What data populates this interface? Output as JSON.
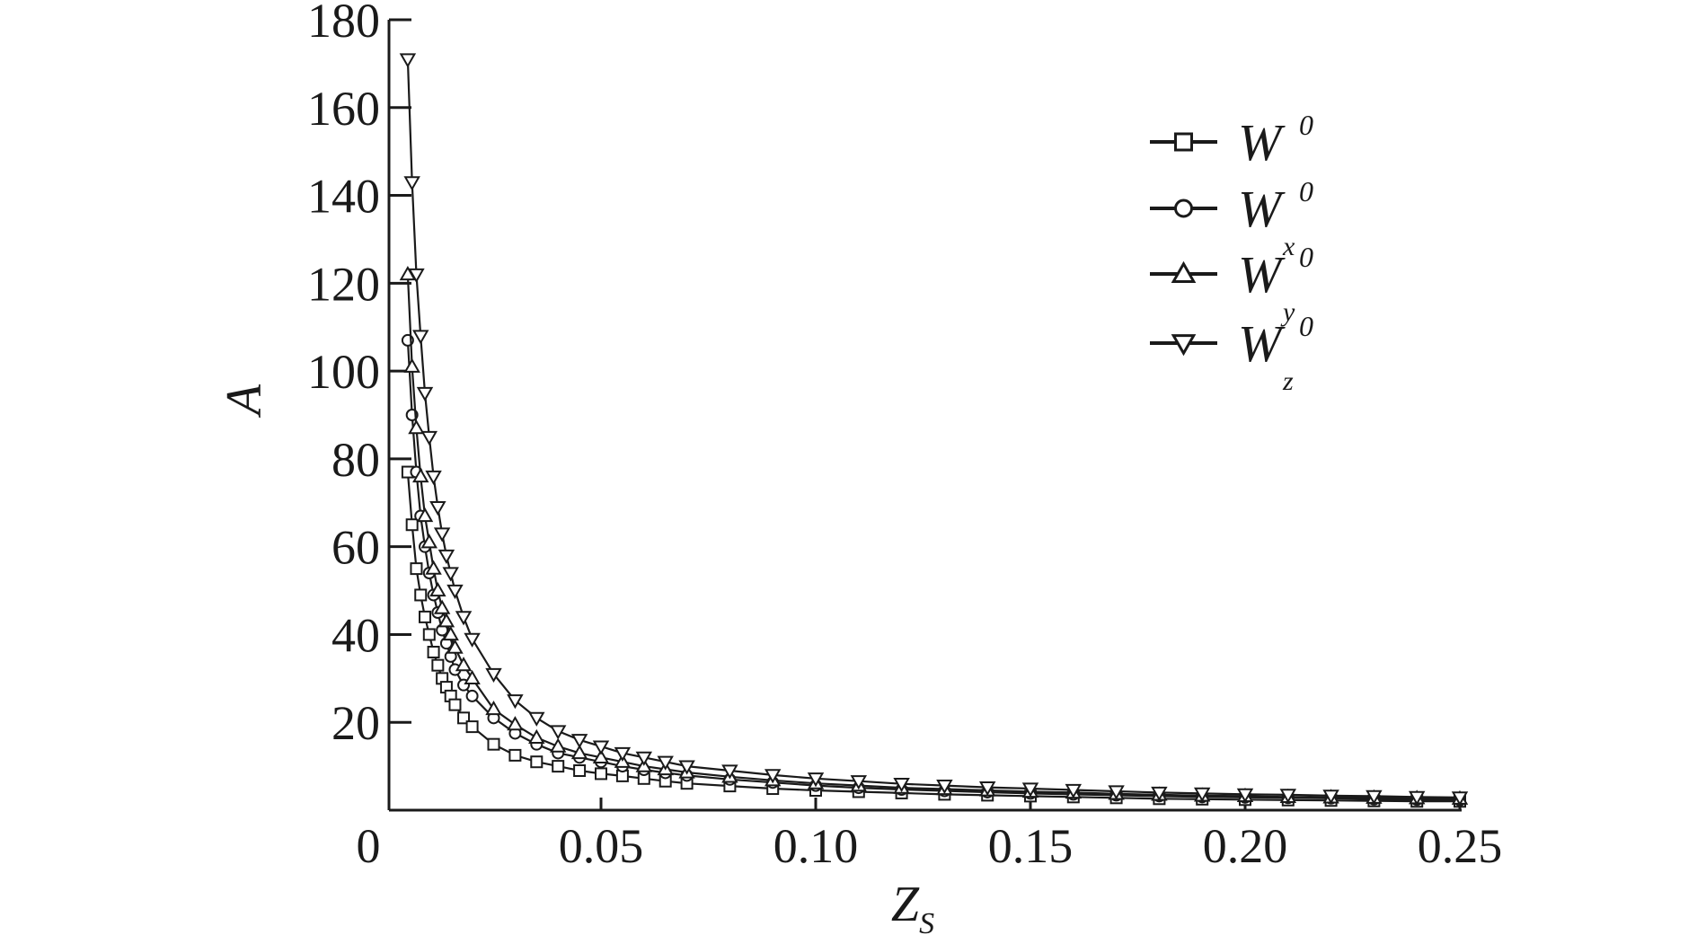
{
  "chart_data": {
    "type": "line",
    "title": "",
    "xlabel": {
      "main": "Z",
      "sub": "S"
    },
    "ylabel": "A",
    "xlim": [
      0,
      0.25
    ],
    "ylim": [
      0,
      180
    ],
    "x_ticks": [
      "0",
      "0.05",
      "0.10",
      "0.15",
      "0.20",
      "0.25"
    ],
    "x_tick_values": [
      0,
      0.05,
      0.1,
      0.15,
      0.2,
      0.25
    ],
    "y_ticks": [
      "20",
      "40",
      "60",
      "80",
      "100",
      "120",
      "140",
      "160",
      "180"
    ],
    "y_tick_values": [
      20,
      40,
      60,
      80,
      100,
      120,
      140,
      160,
      180
    ],
    "grid": false,
    "legend_position": "top-right",
    "colors": {
      "line": "#1a1a1a",
      "marker_fill": "#ffffff",
      "background": "#ffffff"
    },
    "series": [
      {
        "name": "W^0",
        "label_main": "W",
        "label_sup": "0",
        "label_sub": "",
        "marker": "square",
        "x": [
          0.005,
          0.006,
          0.007,
          0.008,
          0.009,
          0.01,
          0.011,
          0.012,
          0.013,
          0.014,
          0.015,
          0.016,
          0.018,
          0.02,
          0.025,
          0.03,
          0.035,
          0.04,
          0.045,
          0.05,
          0.055,
          0.06,
          0.065,
          0.07,
          0.08,
          0.09,
          0.1,
          0.11,
          0.12,
          0.13,
          0.14,
          0.15,
          0.16,
          0.17,
          0.18,
          0.19,
          0.2,
          0.21,
          0.22,
          0.23,
          0.24,
          0.25
        ],
        "y": [
          77,
          65,
          55,
          49,
          44,
          40,
          36,
          33,
          30,
          28,
          26,
          24,
          21,
          19,
          15,
          12.5,
          11,
          10,
          9,
          8.3,
          7.8,
          7.2,
          6.6,
          6.1,
          5.5,
          4.9,
          4.5,
          4.2,
          3.9,
          3.6,
          3.4,
          3.2,
          3.0,
          2.8,
          2.6,
          2.5,
          2.4,
          2.3,
          2.2,
          2.1,
          2.0,
          2.0
        ]
      },
      {
        "name": "W_x^0",
        "label_main": "W",
        "label_sup": "0",
        "label_sub": "x",
        "marker": "circle",
        "x": [
          0.005,
          0.006,
          0.007,
          0.008,
          0.009,
          0.01,
          0.011,
          0.012,
          0.013,
          0.014,
          0.015,
          0.016,
          0.018,
          0.02,
          0.025,
          0.03,
          0.035,
          0.04,
          0.045,
          0.05,
          0.055,
          0.06,
          0.065,
          0.07,
          0.08,
          0.09,
          0.1,
          0.11,
          0.12,
          0.13,
          0.14,
          0.15,
          0.16,
          0.17,
          0.18,
          0.19,
          0.2,
          0.21,
          0.22,
          0.23,
          0.24,
          0.25
        ],
        "y": [
          107,
          90,
          77,
          67,
          60,
          54,
          49,
          45,
          41,
          38,
          35,
          32,
          28.5,
          26,
          21,
          17.5,
          15,
          13,
          12,
          11,
          10,
          9.2,
          8.5,
          7.9,
          7.0,
          6.3,
          5.6,
          5.1,
          4.7,
          4.4,
          4.1,
          3.8,
          3.6,
          3.4,
          3.2,
          3.0,
          2.9,
          2.8,
          2.7,
          2.5,
          2.4,
          2.3
        ]
      },
      {
        "name": "W_y^0",
        "label_main": "W",
        "label_sup": "0",
        "label_sub": "y",
        "marker": "triangle-up",
        "x": [
          0.005,
          0.006,
          0.007,
          0.008,
          0.009,
          0.01,
          0.011,
          0.012,
          0.013,
          0.014,
          0.015,
          0.016,
          0.018,
          0.02,
          0.025,
          0.03,
          0.035,
          0.04,
          0.045,
          0.05,
          0.055,
          0.06,
          0.065,
          0.07,
          0.08,
          0.09,
          0.1,
          0.11,
          0.12,
          0.13,
          0.14,
          0.15,
          0.16,
          0.17,
          0.18,
          0.19,
          0.2,
          0.21,
          0.22,
          0.23,
          0.24,
          0.25
        ],
        "y": [
          122,
          101,
          87,
          76,
          67,
          61,
          55,
          50,
          46,
          43,
          40,
          37,
          33,
          30,
          23,
          19.5,
          16.5,
          14.5,
          13,
          12,
          11,
          10,
          9.3,
          8.6,
          7.6,
          6.8,
          6.1,
          5.6,
          5.1,
          4.8,
          4.5,
          4.2,
          4.0,
          3.7,
          3.5,
          3.3,
          3.2,
          3.0,
          2.9,
          2.8,
          2.7,
          2.6
        ]
      },
      {
        "name": "W_z^0",
        "label_main": "W",
        "label_sup": "0",
        "label_sub": "z",
        "marker": "triangle-down",
        "x": [
          0.005,
          0.006,
          0.007,
          0.008,
          0.009,
          0.01,
          0.011,
          0.012,
          0.013,
          0.014,
          0.015,
          0.016,
          0.018,
          0.02,
          0.025,
          0.03,
          0.035,
          0.04,
          0.045,
          0.05,
          0.055,
          0.06,
          0.065,
          0.07,
          0.08,
          0.09,
          0.1,
          0.11,
          0.12,
          0.13,
          0.14,
          0.15,
          0.16,
          0.17,
          0.18,
          0.19,
          0.2,
          0.21,
          0.22,
          0.23,
          0.24,
          0.25
        ],
        "y": [
          171,
          143,
          122,
          108,
          95,
          85,
          76,
          69,
          63,
          58,
          54,
          50,
          44,
          39,
          31,
          25,
          21,
          18,
          16,
          14.5,
          13,
          12,
          11,
          10,
          9,
          8,
          7.2,
          6.6,
          6.0,
          5.6,
          5.2,
          4.9,
          4.6,
          4.3,
          4.0,
          3.8,
          3.6,
          3.5,
          3.3,
          3.2,
          3.0,
          2.9
        ]
      }
    ]
  }
}
